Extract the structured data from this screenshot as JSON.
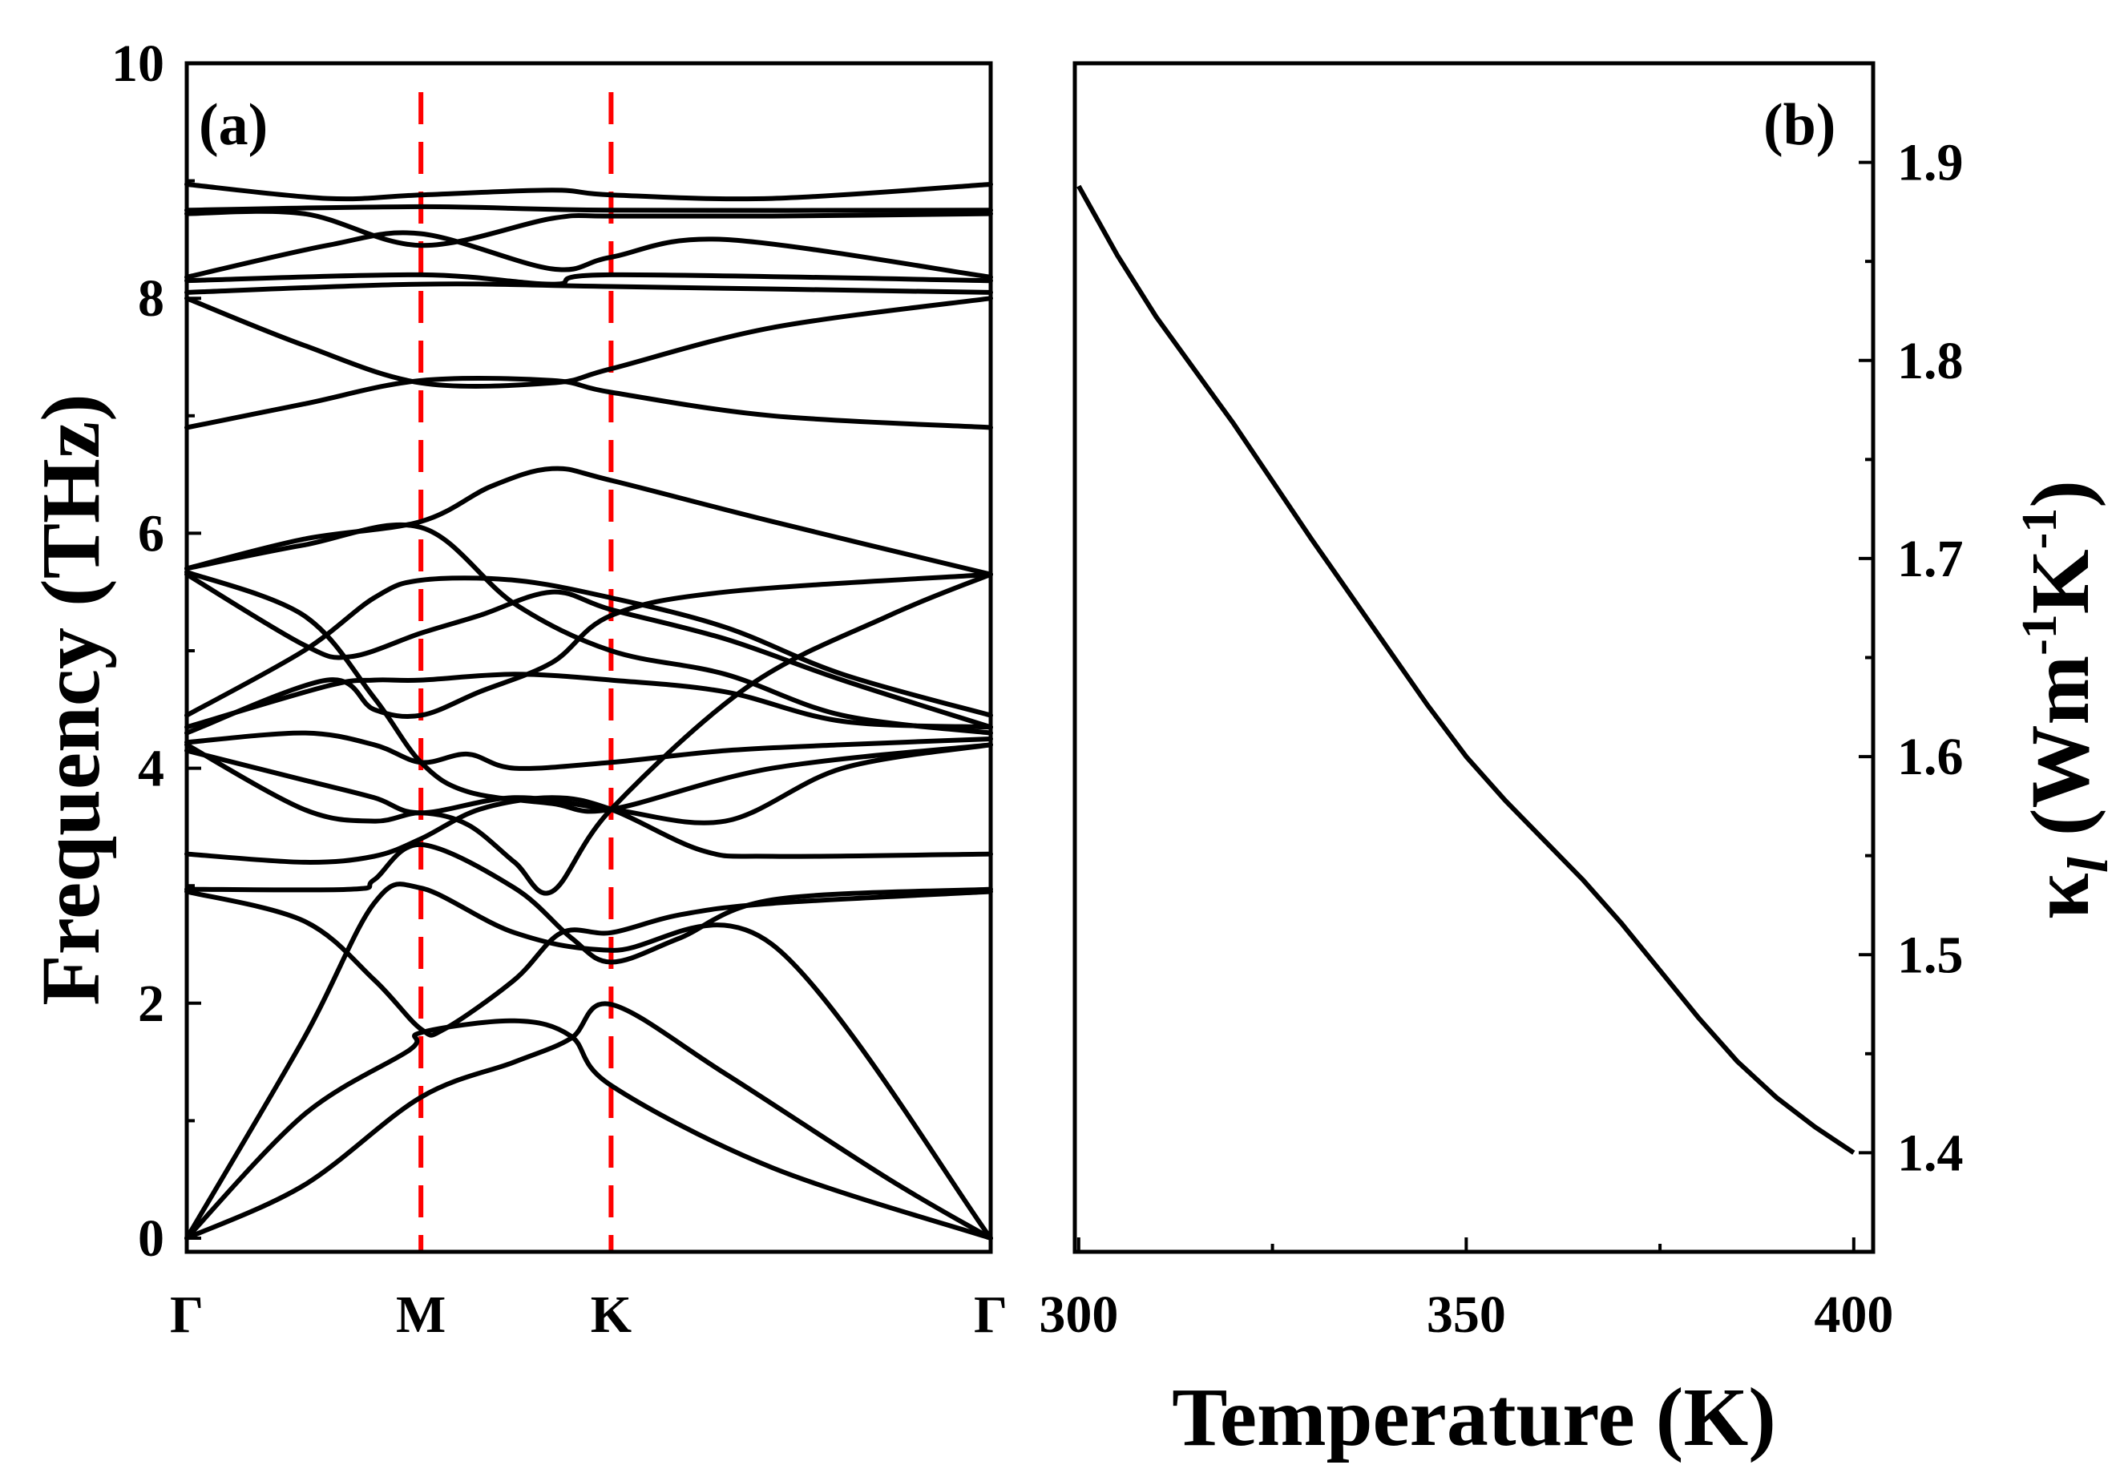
{
  "chart_data": [
    {
      "panel": "(a)",
      "type": "line",
      "ylabel": "Frequency (THz)",
      "ylim": [
        0,
        10
      ],
      "yticks": [
        0,
        2,
        4,
        6,
        8,
        10
      ],
      "y_tick_labels": [
        "0",
        "2",
        "4",
        "6",
        "8",
        "10"
      ],
      "high_symmetry_points": [
        "Γ",
        "M",
        "K",
        "Γ"
      ],
      "high_symmetry_positions": [
        0,
        1,
        1.812,
        3.433
      ],
      "vlines_at": [
        "M",
        "K"
      ],
      "vline_color": "#ff0000",
      "line_color": "#000000",
      "series": [
        {
          "name": "band-1",
          "points": [
            [
              0,
              0
            ],
            [
              0.5,
              0.45
            ],
            [
              1,
              1.2
            ],
            [
              1.4,
              1.5
            ],
            [
              1.64,
              1.7
            ],
            [
              1.812,
              1.99
            ],
            [
              2.3,
              1.4
            ],
            [
              3.0,
              0.5
            ],
            [
              3.433,
              0
            ]
          ]
        },
        {
          "name": "band-2",
          "points": [
            [
              0,
              0
            ],
            [
              0.5,
              1.05
            ],
            [
              0.95,
              1.6
            ],
            [
              1.0,
              1.75
            ],
            [
              1.4,
              1.85
            ],
            [
              1.64,
              1.72
            ],
            [
              1.812,
              1.3
            ],
            [
              2.5,
              0.6
            ],
            [
              3.433,
              0
            ]
          ]
        },
        {
          "name": "band-3",
          "points": [
            [
              0,
              0
            ],
            [
              0.5,
              1.7
            ],
            [
              0.8,
              2.85
            ],
            [
              1,
              2.98
            ],
            [
              1.4,
              2.6
            ],
            [
              1.812,
              2.45
            ],
            [
              2.5,
              2.5
            ],
            [
              3.433,
              0
            ]
          ]
        },
        {
          "name": "band-4",
          "points": [
            [
              0,
              2.95
            ],
            [
              0.5,
              2.7
            ],
            [
              0.8,
              2.2
            ],
            [
              1,
              1.78
            ],
            [
              1.1,
              1.78
            ],
            [
              1.4,
              2.2
            ],
            [
              1.6,
              2.6
            ],
            [
              1.812,
              2.6
            ],
            [
              2.1,
              2.75
            ],
            [
              2.5,
              2.85
            ],
            [
              3.433,
              2.95
            ]
          ]
        },
        {
          "name": "band-5",
          "points": [
            [
              0,
              2.97
            ],
            [
              0.7,
              2.97
            ],
            [
              0.8,
              3.05
            ],
            [
              1,
              3.35
            ],
            [
              1.4,
              2.98
            ],
            [
              1.64,
              2.56
            ],
            [
              1.812,
              2.35
            ],
            [
              2.1,
              2.55
            ],
            [
              2.5,
              2.88
            ],
            [
              3.433,
              2.97
            ]
          ]
        },
        {
          "name": "band-6",
          "points": [
            [
              0,
              3.27
            ],
            [
              0.5,
              3.2
            ],
            [
              0.8,
              3.25
            ],
            [
              1,
              3.4
            ],
            [
              1.25,
              3.65
            ],
            [
              1.56,
              3.75
            ],
            [
              1.812,
              3.65
            ],
            [
              2.2,
              3.3
            ],
            [
              2.5,
              3.25
            ],
            [
              3.433,
              3.27
            ]
          ]
        },
        {
          "name": "band-7",
          "points": [
            [
              0,
              4.2
            ],
            [
              0.5,
              3.65
            ],
            [
              0.8,
              3.55
            ],
            [
              1,
              3.62
            ],
            [
              1.2,
              3.52
            ],
            [
              1.4,
              3.2
            ],
            [
              1.56,
              2.95
            ],
            [
              1.812,
              3.65
            ],
            [
              2.4,
              4.7
            ],
            [
              3.0,
              5.3
            ],
            [
              3.433,
              5.65
            ]
          ]
        },
        {
          "name": "band-8",
          "points": [
            [
              0,
              4.15
            ],
            [
              0.5,
              3.9
            ],
            [
              0.8,
              3.75
            ],
            [
              1,
              3.62
            ],
            [
              1.4,
              3.75
            ],
            [
              1.812,
              3.65
            ],
            [
              2.3,
              3.55
            ],
            [
              2.8,
              4.0
            ],
            [
              3.433,
              4.2
            ]
          ]
        },
        {
          "name": "band-9",
          "points": [
            [
              0,
              4.22
            ],
            [
              0.5,
              4.3
            ],
            [
              0.8,
              4.2
            ],
            [
              1,
              4.05
            ],
            [
              1.2,
              4.12
            ],
            [
              1.4,
              4.0
            ],
            [
              1.812,
              4.05
            ],
            [
              2.3,
              4.15
            ],
            [
              2.8,
              4.2
            ],
            [
              3.433,
              4.25
            ]
          ]
        },
        {
          "name": "band-10",
          "points": [
            [
              0,
              4.3
            ],
            [
              0.6,
              4.75
            ],
            [
              0.8,
              4.5
            ],
            [
              1,
              4.45
            ],
            [
              1.25,
              4.65
            ],
            [
              1.56,
              4.9
            ],
            [
              1.812,
              5.3
            ],
            [
              2.3,
              5.5
            ],
            [
              3.433,
              5.65
            ]
          ]
        },
        {
          "name": "band-11",
          "points": [
            [
              0,
              4.35
            ],
            [
              0.6,
              4.7
            ],
            [
              0.8,
              4.75
            ],
            [
              1,
              4.75
            ],
            [
              1.4,
              4.8
            ],
            [
              1.812,
              4.75
            ],
            [
              2.3,
              4.65
            ],
            [
              2.8,
              4.4
            ],
            [
              3.433,
              4.35
            ]
          ]
        },
        {
          "name": "band-12",
          "points": [
            [
              0,
              4.45
            ],
            [
              0.5,
              5.0
            ],
            [
              0.8,
              5.45
            ],
            [
              1,
              5.6
            ],
            [
              1.4,
              5.6
            ],
            [
              1.812,
              5.45
            ],
            [
              2.3,
              5.2
            ],
            [
              2.8,
              4.8
            ],
            [
              3.433,
              4.45
            ]
          ]
        },
        {
          "name": "band-13",
          "points": [
            [
              0,
              5.65
            ],
            [
              0.5,
              5.05
            ],
            [
              0.7,
              4.95
            ],
            [
              1,
              5.15
            ],
            [
              1.25,
              5.3
            ],
            [
              1.56,
              5.5
            ],
            [
              1.812,
              5.35
            ],
            [
              2.3,
              5.1
            ],
            [
              2.8,
              4.75
            ],
            [
              3.433,
              4.35
            ]
          ]
        },
        {
          "name": "band-14",
          "points": [
            [
              0,
              5.67
            ],
            [
              0.5,
              5.3
            ],
            [
              0.8,
              4.6
            ],
            [
              1,
              4.05
            ],
            [
              1.2,
              3.8
            ],
            [
              1.56,
              3.7
            ],
            [
              1.812,
              3.65
            ],
            [
              2.5,
              4.0
            ],
            [
              3.433,
              4.2
            ]
          ]
        },
        {
          "name": "band-15",
          "points": [
            [
              0,
              5.7
            ],
            [
              0.5,
              5.9
            ],
            [
              1,
              6.05
            ],
            [
              1.4,
              5.4
            ],
            [
              1.812,
              5.0
            ],
            [
              2.3,
              4.8
            ],
            [
              2.8,
              4.45
            ],
            [
              3.433,
              4.3
            ]
          ]
        },
        {
          "name": "band-16",
          "points": [
            [
              0,
              5.7
            ],
            [
              0.5,
              5.95
            ],
            [
              1,
              6.1
            ],
            [
              1.3,
              6.4
            ],
            [
              1.56,
              6.55
            ],
            [
              1.812,
              6.45
            ],
            [
              2.5,
              6.1
            ],
            [
              3.433,
              5.65
            ]
          ]
        },
        {
          "name": "band-17",
          "points": [
            [
              0,
              6.9
            ],
            [
              0.5,
              7.1
            ],
            [
              1,
              7.3
            ],
            [
              1.56,
              7.3
            ],
            [
              1.812,
              7.2
            ],
            [
              2.5,
              7.0
            ],
            [
              3.433,
              6.9
            ]
          ]
        },
        {
          "name": "band-18",
          "points": [
            [
              0,
              8.0
            ],
            [
              0.5,
              7.6
            ],
            [
              1,
              7.28
            ],
            [
              1.56,
              7.28
            ],
            [
              1.812,
              7.4
            ],
            [
              2.5,
              7.75
            ],
            [
              3.433,
              8.0
            ]
          ]
        },
        {
          "name": "band-19",
          "points": [
            [
              0,
              8.05
            ],
            [
              1,
              8.12
            ],
            [
              1.812,
              8.1
            ],
            [
              3.433,
              8.05
            ]
          ]
        },
        {
          "name": "band-20",
          "points": [
            [
              0,
              8.15
            ],
            [
              1,
              8.2
            ],
            [
              1.56,
              8.12
            ],
            [
              1.812,
              8.2
            ],
            [
              3.433,
              8.15
            ]
          ]
        },
        {
          "name": "band-21",
          "points": [
            [
              0,
              8.18
            ],
            [
              0.6,
              8.45
            ],
            [
              1,
              8.55
            ],
            [
              1.56,
              8.25
            ],
            [
              1.812,
              8.35
            ],
            [
              2.3,
              8.5
            ],
            [
              3.433,
              8.18
            ]
          ]
        },
        {
          "name": "band-22",
          "points": [
            [
              0,
              8.72
            ],
            [
              0.5,
              8.72
            ],
            [
              1,
              8.45
            ],
            [
              1.56,
              8.68
            ],
            [
              1.812,
              8.7
            ],
            [
              2.5,
              8.7
            ],
            [
              3.433,
              8.72
            ]
          ]
        },
        {
          "name": "band-23",
          "points": [
            [
              0,
              8.75
            ],
            [
              1,
              8.78
            ],
            [
              1.812,
              8.75
            ],
            [
              3.433,
              8.75
            ]
          ]
        },
        {
          "name": "band-24",
          "points": [
            [
              0,
              8.97
            ],
            [
              0.6,
              8.85
            ],
            [
              1,
              8.88
            ],
            [
              1.56,
              8.92
            ],
            [
              1.812,
              8.88
            ],
            [
              2.5,
              8.85
            ],
            [
              3.433,
              8.97
            ]
          ]
        }
      ]
    },
    {
      "panel": "(b)",
      "type": "line",
      "xlabel": "Temperature (K)",
      "ylabel": "κl (Wm-1K-1)",
      "ylabel_parts": {
        "kappa": "κ",
        "kappa_sub": "l",
        "open": " (Wm",
        "sup1": "-1",
        "mid": "K",
        "sup2": "-1",
        "close": ")"
      },
      "xlim": [
        299.5,
        402.5
      ],
      "ylim": [
        1.35,
        1.95
      ],
      "xticks": [
        300,
        350,
        400
      ],
      "x_tick_labels": [
        "300",
        "350",
        "400"
      ],
      "yticks": [
        1.4,
        1.5,
        1.6,
        1.7,
        1.8,
        1.9
      ],
      "y_tick_labels": [
        "1.4",
        "1.5",
        "1.6",
        "1.7",
        "1.8",
        "1.9"
      ],
      "line_color": "#000000",
      "series": [
        {
          "name": "kappa_l",
          "x": [
            300,
            305,
            310,
            315,
            320,
            325,
            330,
            335,
            340,
            345,
            350,
            355,
            360,
            365,
            370,
            375,
            380,
            385,
            390,
            395,
            400
          ],
          "y": [
            1.888,
            1.853,
            1.822,
            1.795,
            1.768,
            1.739,
            1.71,
            1.682,
            1.654,
            1.626,
            1.6,
            1.578,
            1.558,
            1.538,
            1.516,
            1.492,
            1.468,
            1.446,
            1.428,
            1.413,
            1.4
          ]
        }
      ]
    }
  ]
}
